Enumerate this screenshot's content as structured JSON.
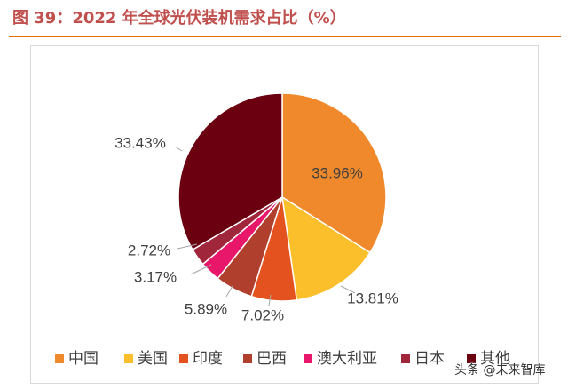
{
  "figure": {
    "title": "图 39：2022 年全球光伏装机需求占比（%）"
  },
  "chart_data": {
    "type": "pie",
    "title": "",
    "categories": [
      "中国",
      "美国",
      "印度",
      "巴西",
      "澳大利亚",
      "日本",
      "其他"
    ],
    "values": [
      33.96,
      13.81,
      7.02,
      5.89,
      3.17,
      2.72,
      33.43
    ],
    "labels": [
      "33.96%",
      "13.81%",
      "7.02%",
      "5.89%",
      "3.17%",
      "2.72%",
      "33.43%"
    ],
    "colors": [
      "#f0892b",
      "#fbbf2b",
      "#e4521f",
      "#b13f2e",
      "#e8176a",
      "#a0263b",
      "#6b0010"
    ],
    "start_angle_deg": 0,
    "direction": "clockwise",
    "legend_position": "bottom"
  },
  "watermark": {
    "text": "头条 @未来智库"
  }
}
